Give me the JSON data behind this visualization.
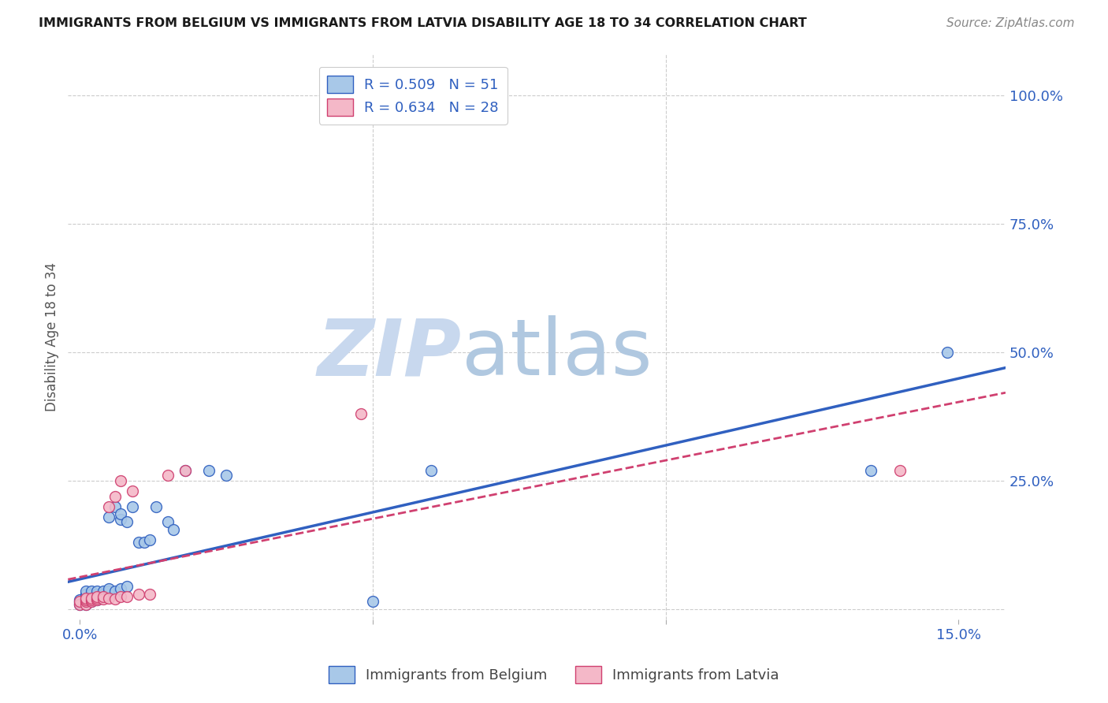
{
  "title": "IMMIGRANTS FROM BELGIUM VS IMMIGRANTS FROM LATVIA DISABILITY AGE 18 TO 34 CORRELATION CHART",
  "source": "Source: ZipAtlas.com",
  "ylabel_label": "Disability Age 18 to 34",
  "legend_belgium": "R = 0.509   N = 51",
  "legend_latvia": "R = 0.634   N = 28",
  "color_belgium": "#a8c8e8",
  "color_latvia": "#f4b8c8",
  "line_color_belgium": "#3060c0",
  "line_color_latvia": "#d04070",
  "background_color": "#ffffff",
  "xlim": [
    -0.002,
    0.158
  ],
  "ylim": [
    -0.02,
    1.08
  ],
  "belgium_x": [
    0.0,
    0.0,
    0.0,
    0.0,
    0.001,
    0.001,
    0.001,
    0.001,
    0.001,
    0.001,
    0.001,
    0.001,
    0.002,
    0.002,
    0.002,
    0.002,
    0.002,
    0.002,
    0.003,
    0.003,
    0.003,
    0.003,
    0.003,
    0.004,
    0.004,
    0.004,
    0.005,
    0.005,
    0.005,
    0.005,
    0.006,
    0.006,
    0.007,
    0.007,
    0.007,
    0.008,
    0.008,
    0.009,
    0.01,
    0.011,
    0.012,
    0.013,
    0.015,
    0.016,
    0.018,
    0.022,
    0.025,
    0.05,
    0.06,
    0.135,
    0.148
  ],
  "belgium_y": [
    0.01,
    0.012,
    0.015,
    0.018,
    0.01,
    0.015,
    0.018,
    0.02,
    0.022,
    0.025,
    0.03,
    0.035,
    0.015,
    0.018,
    0.022,
    0.025,
    0.03,
    0.035,
    0.018,
    0.022,
    0.025,
    0.03,
    0.035,
    0.025,
    0.03,
    0.035,
    0.03,
    0.035,
    0.04,
    0.18,
    0.035,
    0.2,
    0.04,
    0.175,
    0.185,
    0.045,
    0.17,
    0.2,
    0.13,
    0.13,
    0.135,
    0.2,
    0.17,
    0.155,
    0.27,
    0.27,
    0.26,
    0.015,
    0.27,
    0.27,
    0.5
  ],
  "latvia_x": [
    0.0,
    0.0,
    0.001,
    0.001,
    0.001,
    0.001,
    0.002,
    0.002,
    0.002,
    0.003,
    0.003,
    0.003,
    0.004,
    0.004,
    0.005,
    0.005,
    0.006,
    0.006,
    0.007,
    0.007,
    0.008,
    0.009,
    0.01,
    0.012,
    0.015,
    0.018,
    0.048,
    0.14
  ],
  "latvia_y": [
    0.01,
    0.015,
    0.01,
    0.015,
    0.018,
    0.022,
    0.015,
    0.018,
    0.022,
    0.018,
    0.022,
    0.025,
    0.02,
    0.025,
    0.022,
    0.2,
    0.02,
    0.22,
    0.025,
    0.25,
    0.025,
    0.23,
    0.03,
    0.03,
    0.26,
    0.27,
    0.38,
    0.27
  ]
}
